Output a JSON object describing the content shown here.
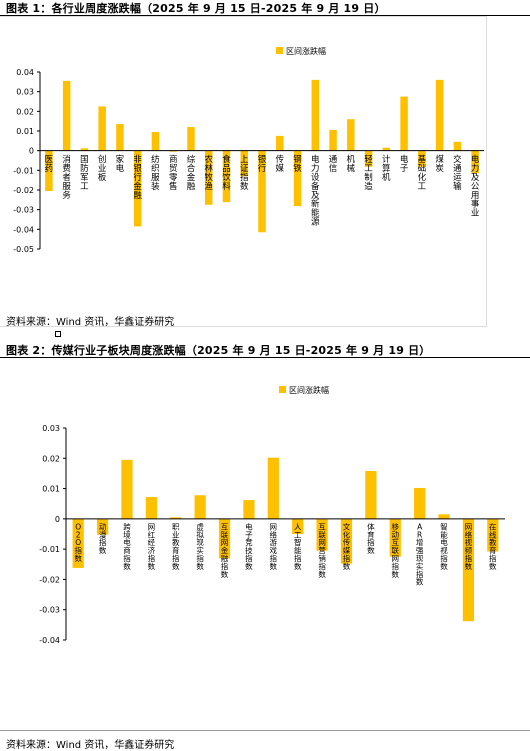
{
  "figures": [
    {
      "title": "图表 1：各行业周度涨跌幅（2025 年 9 月 15 日-2025 年 9 月 19 日）",
      "source": "资料来源：Wind 资讯，华鑫证券研究"
    },
    {
      "title": "图表 2：传媒行业子板块周度涨跌幅（2025 年 9 月 15 日-2025 年 9 月 19 日）",
      "source": "资料来源：Wind 资讯，华鑫证券研究"
    }
  ],
  "colors": {
    "bar": "#FFC000",
    "axis": "#000000"
  },
  "chart_data": [
    {
      "type": "bar",
      "title": "",
      "legend": [
        "区间涨跌幅"
      ],
      "legend_position": "top-center",
      "ylim": [
        -0.05,
        0.04
      ],
      "yticks": [
        "0.04",
        "0.03",
        "0.02",
        "0.01",
        "0",
        "-0.01",
        "-0.02",
        "-0.03",
        "-0.04",
        "-0.05"
      ],
      "grid": false,
      "categories": [
        "医药",
        "消费者服务",
        "国防军工",
        "创业板",
        "家电",
        "非银行金融",
        "纺织服装",
        "商贸零售",
        "综合金融",
        "农林牧渔",
        "食品饮料",
        "上证指数",
        "银行",
        "传媒",
        "钢铁",
        "电力设备及新能源",
        "通信",
        "机械",
        "轻工制造",
        "计算机",
        "电子",
        "基础化工",
        "煤炭",
        "交通运输",
        "电力及公用事业"
      ],
      "series": [
        {
          "name": "区间涨跌幅",
          "values": [
            -0.0205,
            0.0355,
            0.0012,
            0.0225,
            0.0135,
            -0.0385,
            0.0095,
            -0.0005,
            0.012,
            -0.0275,
            -0.0262,
            -0.013,
            -0.0415,
            0.0075,
            -0.0282,
            0.036,
            0.0105,
            0.016,
            -0.0082,
            0.0015,
            0.0275,
            -0.0082,
            0.036,
            0.0045,
            -0.0115
          ]
        }
      ]
    },
    {
      "type": "bar",
      "title": "",
      "legend": [
        "区间涨跌幅"
      ],
      "legend_position": "top-center",
      "ylim": [
        -0.04,
        0.03
      ],
      "yticks": [
        "0.03",
        "0.02",
        "0.01",
        "0",
        "-0.01",
        "-0.02",
        "-0.03",
        "-0.04"
      ],
      "grid": false,
      "categories": [
        "O2O指数",
        "动漫指数",
        "跨境电商指数",
        "网红经济指数",
        "职业教育指数",
        "虚拟现实指数",
        "互联网金融指数",
        "电子竞技指数",
        "网络游戏指数",
        "人工智能指数",
        "互联网营销指数",
        "文化传媒指数",
        "体育指数",
        "移动互联网指数",
        "AR增强现实指数",
        "智能电视指数",
        "网络视频指数",
        "在线教育指数"
      ],
      "series": [
        {
          "name": "区间涨跌幅",
          "values": [
            -0.0162,
            -0.0052,
            0.0195,
            0.0072,
            0.0005,
            0.0078,
            -0.013,
            0.0062,
            0.0202,
            -0.005,
            -0.0105,
            -0.0148,
            0.0158,
            -0.0125,
            0.0102,
            0.0015,
            -0.0338,
            -0.0108
          ]
        }
      ]
    }
  ]
}
